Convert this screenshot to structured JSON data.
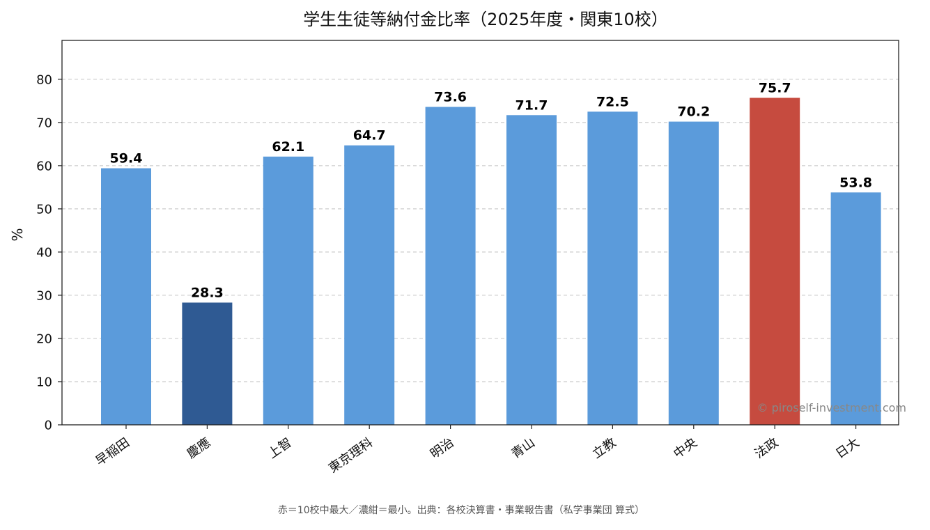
{
  "chart_data": {
    "type": "bar",
    "title": "学生生徒等納付金比率（2025年度・関東10校）",
    "xlabel": "",
    "ylabel": "%",
    "ylim": [
      0,
      89
    ],
    "yticks": [
      0,
      10,
      20,
      30,
      40,
      50,
      60,
      70,
      80
    ],
    "grid": "y-dashed",
    "categories": [
      "早稲田",
      "慶應",
      "上智",
      "東京理科",
      "明治",
      "青山",
      "立教",
      "中央",
      "法政",
      "日大"
    ],
    "values": [
      59.4,
      28.3,
      62.1,
      64.7,
      73.6,
      71.7,
      72.5,
      70.2,
      75.7,
      53.8
    ],
    "data_labels": [
      "59.4",
      "28.3",
      "62.1",
      "64.7",
      "73.6",
      "71.7",
      "72.5",
      "70.2",
      "75.7",
      "53.8"
    ],
    "bar_colors": [
      "#5b9bdb",
      "#2f5a93",
      "#5b9bdb",
      "#5b9bdb",
      "#5b9bdb",
      "#5b9bdb",
      "#5b9bdb",
      "#5b9bdb",
      "#c64b3f",
      "#5b9bdb"
    ],
    "watermark": "© piroself-investment.com",
    "footnote": "赤＝10校中最大／濃紺＝最小。出典：各校決算書・事業報告書（私学事業団 算式）"
  }
}
